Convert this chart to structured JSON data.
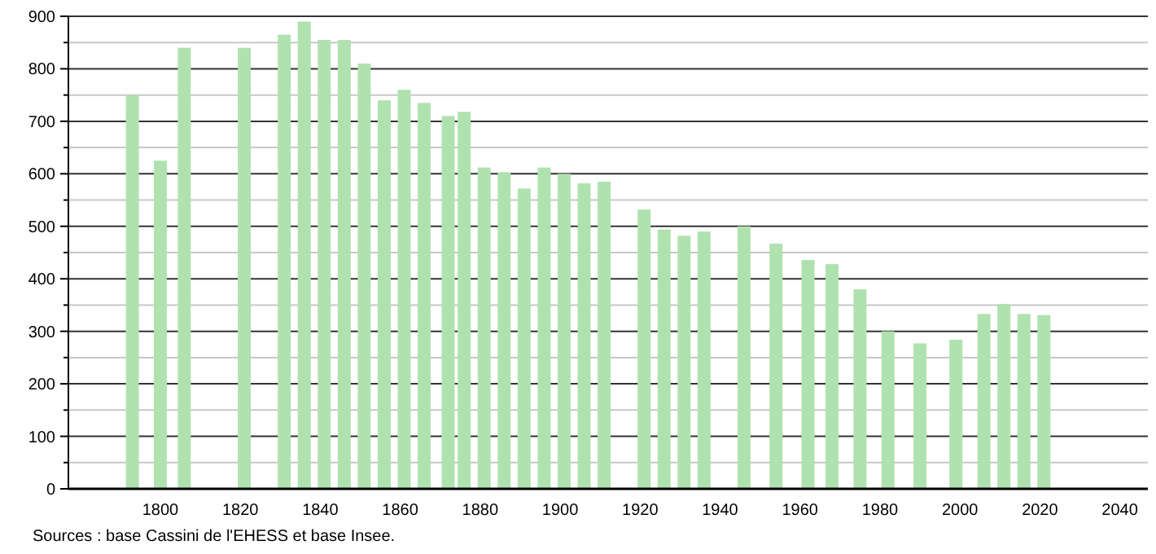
{
  "chart_data": {
    "type": "bar",
    "x": [
      1793,
      1800,
      1806,
      1821,
      1831,
      1836,
      1841,
      1846,
      1851,
      1856,
      1861,
      1866,
      1872,
      1876,
      1881,
      1886,
      1891,
      1896,
      1901,
      1906,
      1911,
      1921,
      1926,
      1931,
      1936,
      1946,
      1954,
      1962,
      1968,
      1975,
      1982,
      1990,
      1999,
      2006,
      2011,
      2016,
      2021
    ],
    "values": [
      750,
      625,
      840,
      840,
      865,
      890,
      855,
      855,
      810,
      740,
      760,
      735,
      710,
      718,
      612,
      603,
      572,
      612,
      600,
      582,
      585,
      532,
      494,
      482,
      490,
      500,
      467,
      436,
      428,
      380,
      300,
      277,
      284,
      333,
      352,
      333,
      331
    ],
    "color": "#b0e2b0",
    "xlim": [
      1777,
      2047
    ],
    "xticks": [
      1800,
      1820,
      1840,
      1860,
      1880,
      1900,
      1920,
      1940,
      1960,
      1980,
      2000,
      2020,
      2040
    ],
    "ylim": [
      0,
      900
    ],
    "yticks": [
      0,
      {
        "value": 50,
        "label": null
      },
      100,
      {
        "value": 150,
        "label": null
      },
      200,
      {
        "value": 250,
        "label": null
      },
      300,
      {
        "value": 350,
        "label": null
      },
      400,
      {
        "value": 450,
        "label": null
      },
      500,
      {
        "value": 550,
        "label": null
      },
      600,
      {
        "value": 650,
        "label": null
      },
      700,
      {
        "value": 750,
        "label": null
      },
      800,
      {
        "value": 850,
        "label": null
      },
      900
    ],
    "grid": "y",
    "annotations": [
      "Sources : base Cassini de l'EHESS et base Insee."
    ]
  }
}
